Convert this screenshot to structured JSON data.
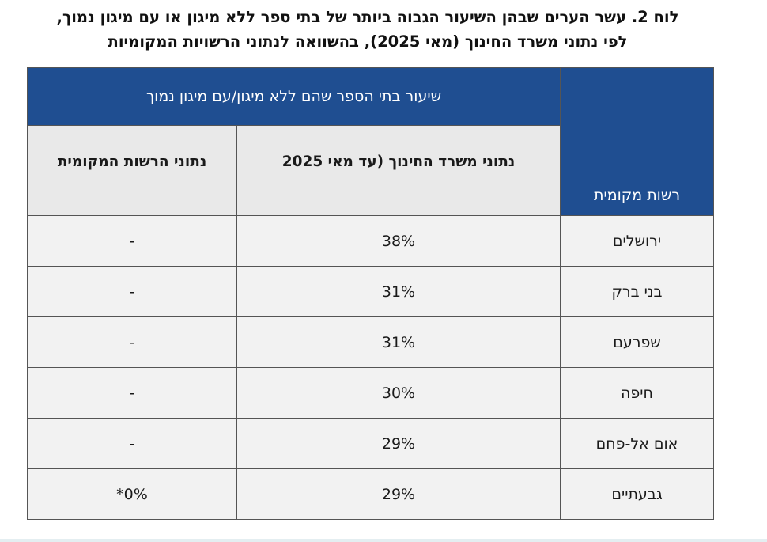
{
  "caption": {
    "line1": "לוח 2. עשר הערים שבהן השיעור הגבוה ביותר של בתי ספר ללא מיגון או עם מיגון נמוך,",
    "line2": "לפי נתוני משרד החינוך (מאי 2025), בהשוואה לנתוני הרשויות המקומיות"
  },
  "table": {
    "col_name_header": "רשות מקומית",
    "group_header": "שיעור בתי הספר שהם ללא מיגון/עם מיגון נמוך",
    "col_ministry_header": "נתוני משרד החינוך (עד מאי 2025",
    "col_local_header": "נתוני הרשות המקומית",
    "rows": [
      {
        "name": "ירושלים",
        "ministry": "38%",
        "local": "-"
      },
      {
        "name": "בני ברק",
        "ministry": "31%",
        "local": "-"
      },
      {
        "name": "שפרעם",
        "ministry": "31%",
        "local": "-"
      },
      {
        "name": "חיפה",
        "ministry": "30%",
        "local": "-"
      },
      {
        "name": "אום אל-פחם",
        "ministry": "29%",
        "local": "-"
      },
      {
        "name": "גבעתיים",
        "ministry": "29%",
        "local": "0%*"
      }
    ]
  },
  "colors": {
    "header_blue": "#1f4e91",
    "cell_gray": "#f2f2f2",
    "border": "#555555"
  }
}
